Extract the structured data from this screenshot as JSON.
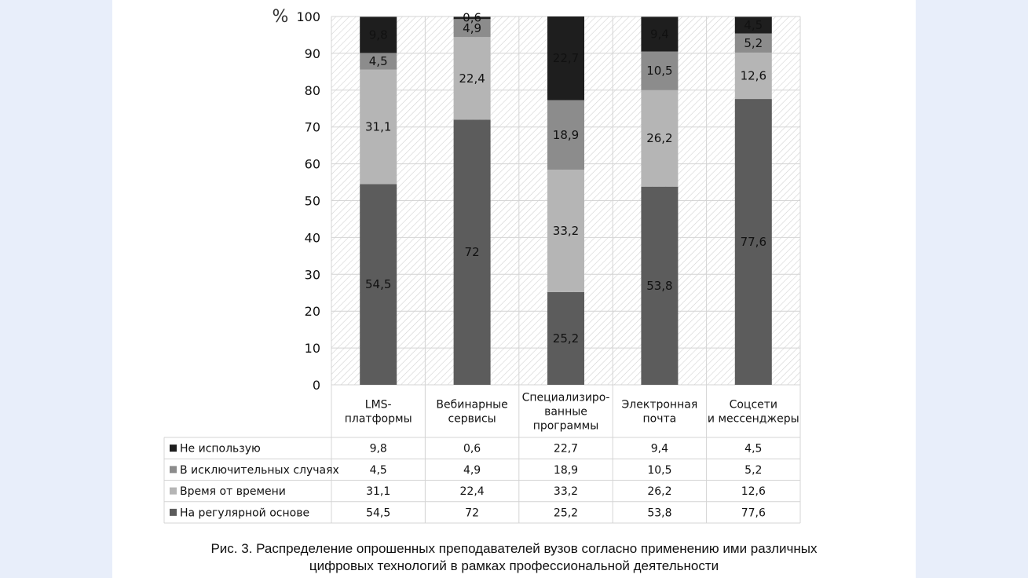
{
  "chart_data": {
    "type": "bar",
    "stacked": true,
    "unit_label": "%",
    "ylim": [
      0,
      100
    ],
    "yticks": [
      0,
      10,
      20,
      30,
      40,
      50,
      60,
      70,
      80,
      90,
      100
    ],
    "grid": true,
    "legend": "data-table-left",
    "categories": [
      [
        "LMS-",
        "платформы"
      ],
      [
        "Вебинарные",
        "сервисы"
      ],
      [
        "Специализиро-",
        "ванные",
        "программы"
      ],
      [
        "Электронная",
        "почта"
      ],
      [
        "Соцсети",
        "и мессенджеры"
      ]
    ],
    "series": [
      {
        "name": "На регулярной основе",
        "color": "#5c5c5c",
        "values": [
          54.5,
          72,
          25.2,
          53.8,
          77.6
        ],
        "labels": [
          "54,5",
          "72",
          "25,2",
          "53,8",
          "77,6"
        ]
      },
      {
        "name": "Время от времени",
        "color": "#b5b5b5",
        "values": [
          31.1,
          22.4,
          33.2,
          26.2,
          12.6
        ],
        "labels": [
          "31,1",
          "22,4",
          "33,2",
          "26,2",
          "12,6"
        ]
      },
      {
        "name": "В исключительных случаях",
        "color": "#8c8c8c",
        "values": [
          4.5,
          4.9,
          18.9,
          10.5,
          5.2
        ],
        "labels": [
          "4,5",
          "4,9",
          "18,9",
          "10,5",
          "5,2"
        ]
      },
      {
        "name": "Не использую",
        "color": "#1e1e1e",
        "values": [
          9.8,
          0.6,
          22.7,
          9.4,
          4.5
        ],
        "labels": [
          "9,8",
          "0,6",
          "22,7",
          "9,4",
          "4,5"
        ]
      }
    ]
  },
  "caption": {
    "line1": "Рис. 3. Распределение опрошенных преподавателей вузов согласно применению ими различных",
    "line2": "цифровых технологий в рамках профессиональной деятельности"
  }
}
